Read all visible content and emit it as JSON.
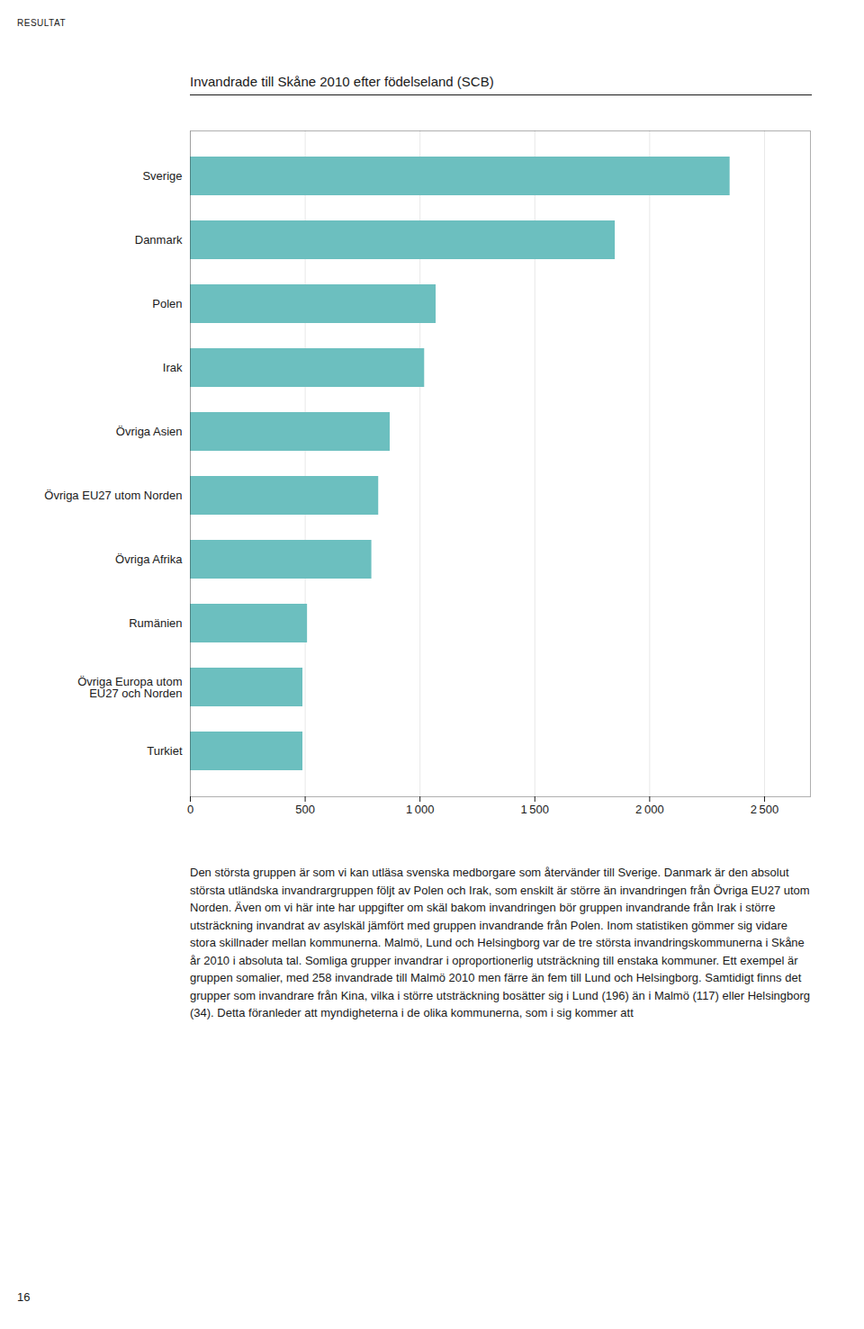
{
  "chart_data": {
    "type": "bar",
    "orientation": "horizontal",
    "title": "Invandrade till Skåne 2010 efter födelseland (SCB)",
    "categories": [
      "Turkiet",
      "Övriga Europa utom\nEU27 och Norden",
      "Rumänien",
      "Övriga Afrika",
      "Övriga EU27 utom Norden",
      "Övriga Asien",
      "Irak",
      "Polen",
      "Danmark",
      "Sverige"
    ],
    "values": [
      490,
      490,
      510,
      790,
      820,
      870,
      1020,
      1070,
      1850,
      2350
    ],
    "color": "#6CBFBF",
    "xlim": [
      0,
      2700
    ],
    "xticks": [
      0,
      500,
      {
        "value": 1000,
        "label": "1 000"
      },
      {
        "value": 1500,
        "label": "1 500"
      },
      {
        "value": 2000,
        "label": "2 000"
      },
      {
        "value": 2500,
        "label": "2 500"
      }
    ],
    "grid": true,
    "annotations": [
      "RESULTAT",
      "Den största gruppen är som vi kan utläsa svenska medborgare som återvänder till Sverige. Danmark är den absolut största utländska invandrargruppen följt av Polen och Irak, som enskilt är större än invandringen från Övriga EU27 utom Norden. Även om vi här inte har uppgifter om skäl bakom invandringen bör gruppen invandrande från Irak i större utsträckning invandrat av asylskäl jämfört med gruppen invandrande från Polen. Inom statistiken gömmer sig vidare stora skillnader mellan kommunerna. Malmö, Lund och Helsingborg var de tre största invandringskommunerna i Skåne år 2010 i absoluta tal. Somliga grupper invandrar i oproportionerlig utsträckning till enstaka kommuner. Ett exempel är gruppen somalier, med 258 invandrade till Malmö 2010 men färre än fem till Lund och Helsingborg. Samtidigt finns det grupper som invandrare från Kina, vilka i större utsträckning bosätter sig i Lund (196) än i Malmö (117) eller Helsingborg (34). Detta föranleder att myndigheterna i de olika kommunerna, som i sig kommer att",
      "16"
    ]
  }
}
